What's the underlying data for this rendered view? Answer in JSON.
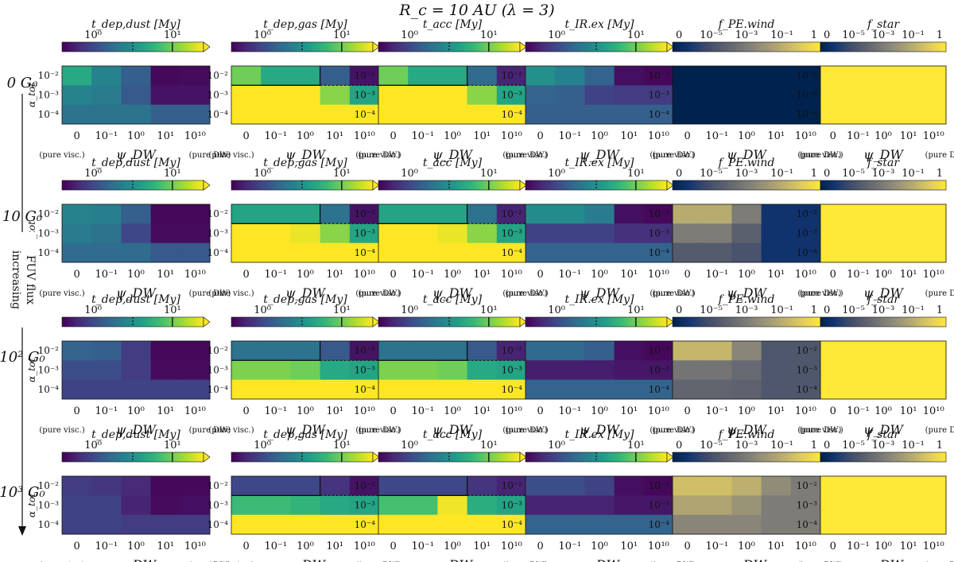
{
  "title": "R_c = 10 AU (λ = 3)",
  "row_labels": [
    "0 G₀",
    "10 G₀",
    "10² G₀",
    "10³ G₀"
  ],
  "side_label": "increasing FUV flux",
  "y_label": "α_tot",
  "x_label": "ψ_DW",
  "x_left_note": "(pure visc.)",
  "x_right_note": "(pure DW)",
  "x_ticks": [
    "0",
    "10⁻¹",
    "10⁰",
    "10¹",
    "10¹⁰"
  ],
  "y_ticks": [
    "10⁻²",
    "10⁻³",
    "10⁻⁴"
  ],
  "colors": {
    "viridis": [
      "#440154",
      "#482878",
      "#3e4989",
      "#31688e",
      "#26828e",
      "#1f9e89",
      "#35b779",
      "#6ece58",
      "#b5de2b",
      "#fde725"
    ],
    "cividis": [
      "#00224e",
      "#123570",
      "#3b496c",
      "#575d6d",
      "#707173",
      "#8a8779",
      "#a69d75",
      "#c4b56c",
      "#e4cf5b",
      "#fee838"
    ]
  },
  "chart_data": [
    {
      "type": "heatmap",
      "title": "t_dep,dust [My]",
      "colormap": "viridis",
      "scale": "log",
      "colorbar_ticks": [
        "10⁰",
        "10¹"
      ],
      "colorbar_markers": {
        "dashed": "10⁰·⁵",
        "solid": "10¹"
      }
    },
    {
      "type": "heatmap",
      "title": "t_dep,gas [My]",
      "colormap": "viridis",
      "scale": "log",
      "colorbar_ticks": [
        "10⁰",
        "10¹"
      ],
      "colorbar_markers": {
        "dashed": "10⁰·⁵",
        "solid": "10¹"
      }
    },
    {
      "type": "heatmap",
      "title": "t_acc [My]",
      "colormap": "viridis",
      "scale": "log",
      "colorbar_ticks": [
        "10⁰",
        "10¹"
      ],
      "colorbar_markers": {
        "dashed": "10⁰·⁵",
        "solid": "10¹"
      }
    },
    {
      "type": "heatmap",
      "title": "t_IR.ex [My]",
      "colormap": "viridis",
      "scale": "log",
      "colorbar_ticks": [
        "10⁰",
        "10¹"
      ],
      "colorbar_markers": {
        "dashed": "10⁰·⁵",
        "solid": "10¹"
      }
    },
    {
      "type": "heatmap",
      "title": "f_PE.wind",
      "colormap": "cividis",
      "scale": "log",
      "colorbar_ticks": [
        "0",
        "10⁻⁵",
        "10⁻³",
        "10⁻¹",
        "1"
      ]
    },
    {
      "type": "heatmap",
      "title": "f_star",
      "colormap": "cividis",
      "scale": "log",
      "colorbar_ticks": [
        "0",
        "10⁻⁵",
        "10⁻³",
        "10⁻¹",
        "1"
      ]
    }
  ],
  "grid_values": [
    [
      [
        [
          0.6,
          0.45,
          0.3,
          0.02,
          0.03
        ],
        [
          0.45,
          0.42,
          0.28,
          0.05,
          0.05
        ],
        [
          0.38,
          0.38,
          0.38,
          0.3,
          0.3
        ]
      ],
      [
        [
          0.78,
          0.6,
          0.6,
          0.3,
          0.05
        ],
        [
          1,
          1,
          1,
          0.82,
          0.58
        ],
        [
          1,
          1,
          1,
          1,
          1
        ]
      ],
      [
        [
          0.78,
          0.6,
          0.6,
          0.35,
          0.1
        ],
        [
          1,
          1,
          1,
          0.82,
          0.58
        ],
        [
          1,
          1,
          1,
          1,
          1
        ]
      ],
      [
        [
          0.5,
          0.44,
          0.32,
          0.04,
          0.02
        ],
        [
          0.32,
          0.3,
          0.2,
          0.18,
          0.18
        ],
        [
          0.3,
          0.3,
          0.3,
          0.3,
          0.3
        ]
      ],
      [
        [
          0,
          0,
          0,
          0,
          0
        ],
        [
          0,
          0,
          0,
          0,
          0
        ],
        [
          0,
          0,
          0,
          0,
          0
        ]
      ],
      [
        [
          1,
          1,
          1,
          1,
          1
        ],
        [
          1,
          1,
          1,
          1,
          1
        ],
        [
          1,
          1,
          1,
          1,
          1
        ]
      ]
    ],
    [
      [
        [
          0.45,
          0.43,
          0.3,
          0.02,
          0.02
        ],
        [
          0.42,
          0.38,
          0.22,
          0.03,
          0.03
        ],
        [
          0.35,
          0.35,
          0.35,
          0.28,
          0.28
        ]
      ],
      [
        [
          0.58,
          0.58,
          0.58,
          0.38,
          0.05
        ],
        [
          1,
          1,
          0.97,
          0.82,
          0.58
        ],
        [
          1,
          1,
          1,
          1,
          1
        ]
      ],
      [
        [
          0.58,
          0.58,
          0.58,
          0.38,
          0.1
        ],
        [
          1,
          1,
          0.97,
          0.82,
          0.58
        ],
        [
          1,
          1,
          1,
          1,
          1
        ]
      ],
      [
        [
          0.48,
          0.48,
          0.42,
          0.04,
          0.02
        ],
        [
          0.2,
          0.2,
          0.2,
          0.14,
          0.14
        ],
        [
          0.32,
          0.32,
          0.32,
          0.32,
          0.32
        ]
      ],
      [
        [
          0.73,
          0.73,
          0.5,
          0.1,
          0.1
        ],
        [
          0.5,
          0.5,
          0.35,
          0.1,
          0.1
        ],
        [
          0.32,
          0.32,
          0.28,
          0.1,
          0.1
        ]
      ],
      [
        [
          1,
          1,
          1,
          1,
          1
        ],
        [
          1,
          1,
          1,
          1,
          1
        ],
        [
          1,
          1,
          1,
          1,
          1
        ]
      ]
    ],
    [
      [
        [
          0.32,
          0.3,
          0.18,
          0.02,
          0.02
        ],
        [
          0.24,
          0.24,
          0.18,
          0.03,
          0.03
        ],
        [
          0.2,
          0.2,
          0.2,
          0.2,
          0.2
        ]
      ],
      [
        [
          0.38,
          0.38,
          0.38,
          0.28,
          0.05
        ],
        [
          0.8,
          0.8,
          0.78,
          0.6,
          0.58
        ],
        [
          1,
          1,
          1,
          1,
          1
        ]
      ],
      [
        [
          0.38,
          0.38,
          0.38,
          0.28,
          0.1
        ],
        [
          0.8,
          0.8,
          0.78,
          0.6,
          0.58
        ],
        [
          1,
          1,
          1,
          1,
          1
        ]
      ],
      [
        [
          0.34,
          0.34,
          0.3,
          0.04,
          0.02
        ],
        [
          0.08,
          0.08,
          0.08,
          0.06,
          0.06
        ],
        [
          0.32,
          0.32,
          0.32,
          0.32,
          0.32
        ]
      ],
      [
        [
          0.78,
          0.78,
          0.55,
          0.3,
          0.3
        ],
        [
          0.46,
          0.46,
          0.4,
          0.3,
          0.3
        ],
        [
          0.38,
          0.38,
          0.36,
          0.3,
          0.3
        ]
      ],
      [
        [
          1,
          1,
          1,
          1,
          1
        ],
        [
          1,
          1,
          1,
          1,
          1
        ],
        [
          1,
          1,
          1,
          1,
          1
        ]
      ]
    ],
    [
      [
        [
          0.18,
          0.16,
          0.12,
          0.02,
          0.02
        ],
        [
          0.2,
          0.2,
          0.1,
          0.03,
          0.04
        ],
        [
          0.2,
          0.2,
          0.18,
          0.18,
          0.18
        ]
      ],
      [
        [
          0.22,
          0.22,
          0.22,
          0.15,
          0.05
        ],
        [
          0.68,
          0.68,
          0.65,
          0.6,
          0.58
        ],
        [
          1,
          1,
          1,
          1,
          1
        ]
      ],
      [
        [
          0.22,
          0.22,
          0.22,
          0.15,
          0.1
        ],
        [
          0.7,
          0.7,
          0.98,
          0.62,
          0.58
        ],
        [
          1,
          1,
          1,
          1,
          1
        ]
      ],
      [
        [
          0.24,
          0.24,
          0.2,
          0.04,
          0.02
        ],
        [
          0.1,
          0.1,
          0.1,
          0.06,
          0.06
        ],
        [
          0.32,
          0.32,
          0.32,
          0.32,
          0.32
        ]
      ],
      [
        [
          0.82,
          0.82,
          0.75,
          0.58,
          0.5
        ],
        [
          0.7,
          0.7,
          0.62,
          0.5,
          0.5
        ],
        [
          0.55,
          0.55,
          0.55,
          0.5,
          0.5
        ]
      ],
      [
        [
          1,
          1,
          1,
          1,
          1
        ],
        [
          1,
          1,
          1,
          1,
          1
        ],
        [
          1,
          1,
          1,
          1,
          1
        ]
      ]
    ]
  ]
}
